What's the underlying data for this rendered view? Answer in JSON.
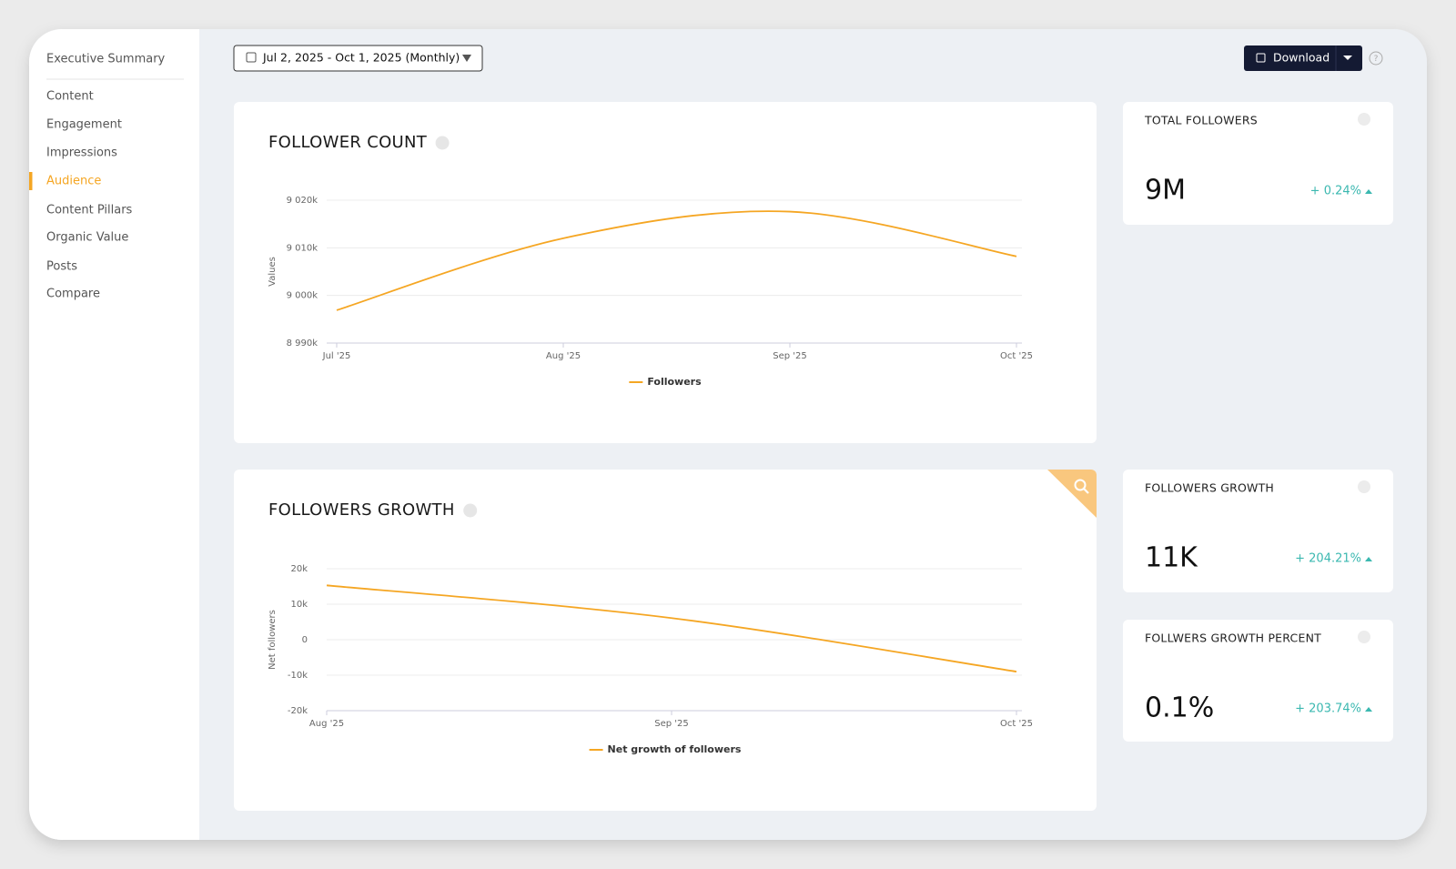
{
  "nav": {
    "items": [
      "Executive Summary",
      "Content",
      "Engagement",
      "Impressions",
      "Audience",
      "Content Pillars",
      "Organic Value",
      "Posts",
      "Compare"
    ],
    "active_index": 4
  },
  "toolbar": {
    "date_range": "Jul 2, 2025 - Oct 1, 2025 (Monthly)",
    "download": "Download"
  },
  "chart_data": [
    {
      "type": "line",
      "title": "FOLLOWER COUNT",
      "y_label": "Values",
      "categories": [
        "Jul '25",
        "Aug '25",
        "Sep '25",
        "Oct '25"
      ],
      "series": [
        {
          "name": "Followers",
          "color": "#f5a623",
          "values": [
            8996.9,
            9012,
            9017.6,
            9008.2
          ]
        }
      ],
      "ylim": [
        8990,
        9020
      ],
      "yticks": [
        {
          "value": 8990,
          "label": "8 990k"
        },
        {
          "value": 9000,
          "label": "9 000k"
        },
        {
          "value": 9010,
          "label": "9 010k"
        },
        {
          "value": 9020,
          "label": "9 020k"
        }
      ],
      "grid": true
    },
    {
      "type": "line",
      "title": "FOLLOWERS GROWTH",
      "y_label": "Net followers",
      "categories": [
        "Aug '25",
        "Sep '25",
        "Oct '25"
      ],
      "series": [
        {
          "name": "Net growth of followers",
          "color": "#f5a623",
          "values": [
            15.3,
            6.1,
            -9.0
          ]
        }
      ],
      "ylim": [
        -20,
        20
      ],
      "yticks": [
        {
          "value": -20,
          "label": "-20k"
        },
        {
          "value": -10,
          "label": "-10k"
        },
        0,
        {
          "value": 10,
          "label": "10k"
        },
        {
          "value": 20,
          "label": "20k"
        }
      ],
      "grid": true
    }
  ],
  "kpis": [
    {
      "title": "TOTAL FOLLOWERS",
      "value": "9M",
      "change": "+ 0.24%"
    },
    {
      "title": "FOLLOWERS GROWTH",
      "value": "11K",
      "change": "+ 204.21%"
    },
    {
      "title": "FOLLWERS GROWTH PERCENT",
      "value": "0.1%",
      "change": "+ 203.74%"
    }
  ]
}
